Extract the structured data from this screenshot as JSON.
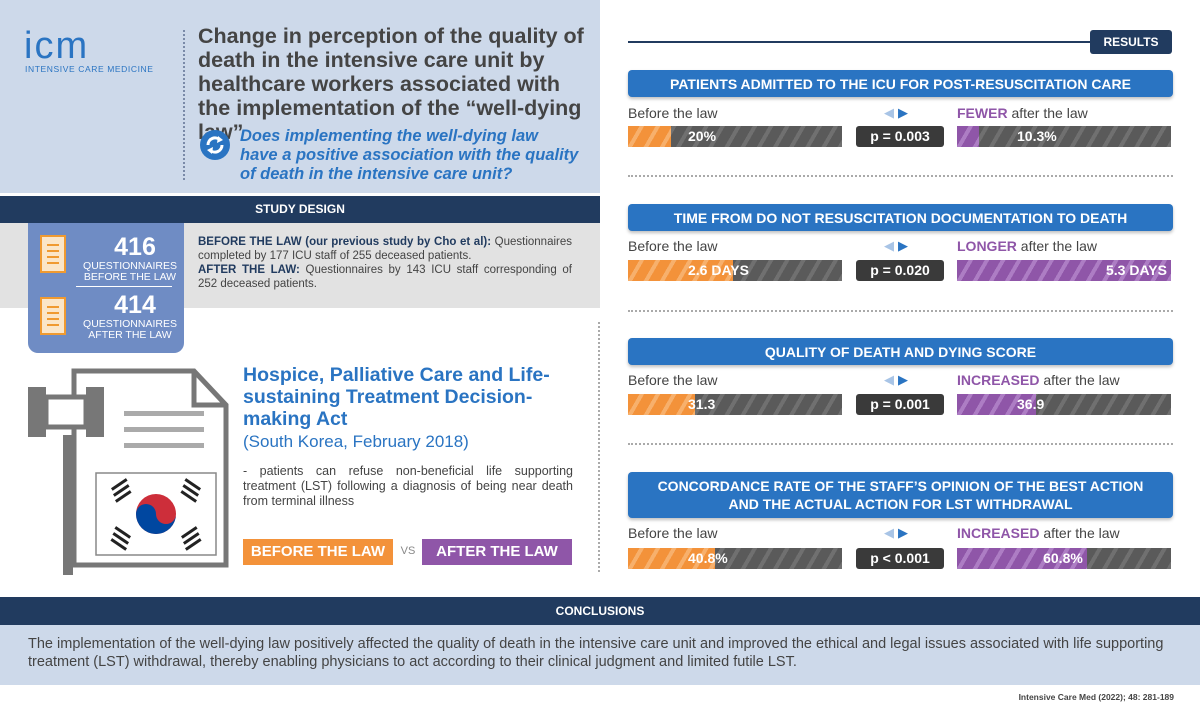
{
  "logo": {
    "mark": "icm",
    "subtitle": "INTENSIVE CARE MEDICINE"
  },
  "title": "Change in perception of the quality of death in the intensive care unit by healthcare workers associated with the implementation of the “well-dying law”",
  "question": "Does implementing the well-dying law have a positive association with the quality of death in the intensive care unit?",
  "study_design": {
    "header": "STUDY DESIGN",
    "count_before": {
      "number": "416",
      "label": "QUESTIONNAIRES BEFORE THE LAW"
    },
    "count_after": {
      "number": "414",
      "label": "QUESTIONNAIRES AFTER THE LAW"
    },
    "before_lead": "BEFORE THE LAW (our previous study by Cho et al):",
    "before_text": " Questionnaires completed by 177 ICU staff of 255 deceased patients.",
    "after_lead": "AFTER THE LAW:",
    "after_text": " Questionnaires by 143 ICU staff corresponding of 252 deceased patients."
  },
  "act": {
    "title": "Hospice, Palliative Care and Life-sustaining Treatment Decision-making Act",
    "subtitle": "(South Korea, February 2018)",
    "description": "- patients can refuse non-beneficial life supporting treatment (LST) following a diagnosis of being near death from terminal illness",
    "before_btn": "BEFORE THE LAW",
    "vs": "VS",
    "after_btn": "AFTER THE LAW"
  },
  "results": {
    "tag": "RESULTS",
    "items": [
      {
        "header": "PATIENTS ADMITTED TO THE ICU FOR POST-RESUSCITATION CARE",
        "before_label": "Before the law",
        "after_emph": "FEWER",
        "after_rest": " after the law",
        "before_value": "20%",
        "before_fill": 0.2,
        "p": "p = 0.003",
        "after_value": "10.3%",
        "after_fill": 0.103
      },
      {
        "header": "TIME FROM DO NOT RESUSCITATION DOCUMENTATION TO DEATH",
        "before_label": "Before the law",
        "after_emph": "LONGER",
        "after_rest": " after the law",
        "before_value": "2.6 DAYS",
        "before_fill": 0.49,
        "p": "p = 0.020",
        "after_value": "5.3 DAYS",
        "after_fill": 1.0
      },
      {
        "header": "QUALITY OF DEATH AND DYING SCORE",
        "before_label": "Before the law",
        "after_emph": "INCREASED",
        "after_rest": " after the law",
        "before_value": "31.3",
        "before_fill": 0.313,
        "p": "p = 0.001",
        "after_value": "36.9",
        "after_fill": 0.369
      },
      {
        "header": "CONCORDANCE RATE OF THE STAFF’S OPINION OF THE BEST ACTION AND THE ACTUAL ACTION FOR LST WITHDRAWAL",
        "before_label": "Before the law",
        "after_emph": "INCREASED",
        "after_rest": " after the law",
        "before_value": "40.8%",
        "before_fill": 0.408,
        "p": "p < 0.001",
        "after_value": "60.8%",
        "after_fill": 0.608
      }
    ]
  },
  "conclusions": {
    "header": "CONCLUSIONS",
    "text": "The implementation of the well-dying law positively affected the quality of death in the intensive care unit and improved the ethical and legal issues associated with life supporting treatment (LST) withdrawal, thereby enabling physicians to act according to their clinical judgment and limited futile LST."
  },
  "citation": "Intensive Care Med (2022); 48: 281-189",
  "colors": {
    "navy": "#213b5f",
    "blue": "#2a74c2",
    "orange": "#f3923a",
    "purple": "#8f56a8",
    "light_blue_bg": "#cdd9ea"
  }
}
